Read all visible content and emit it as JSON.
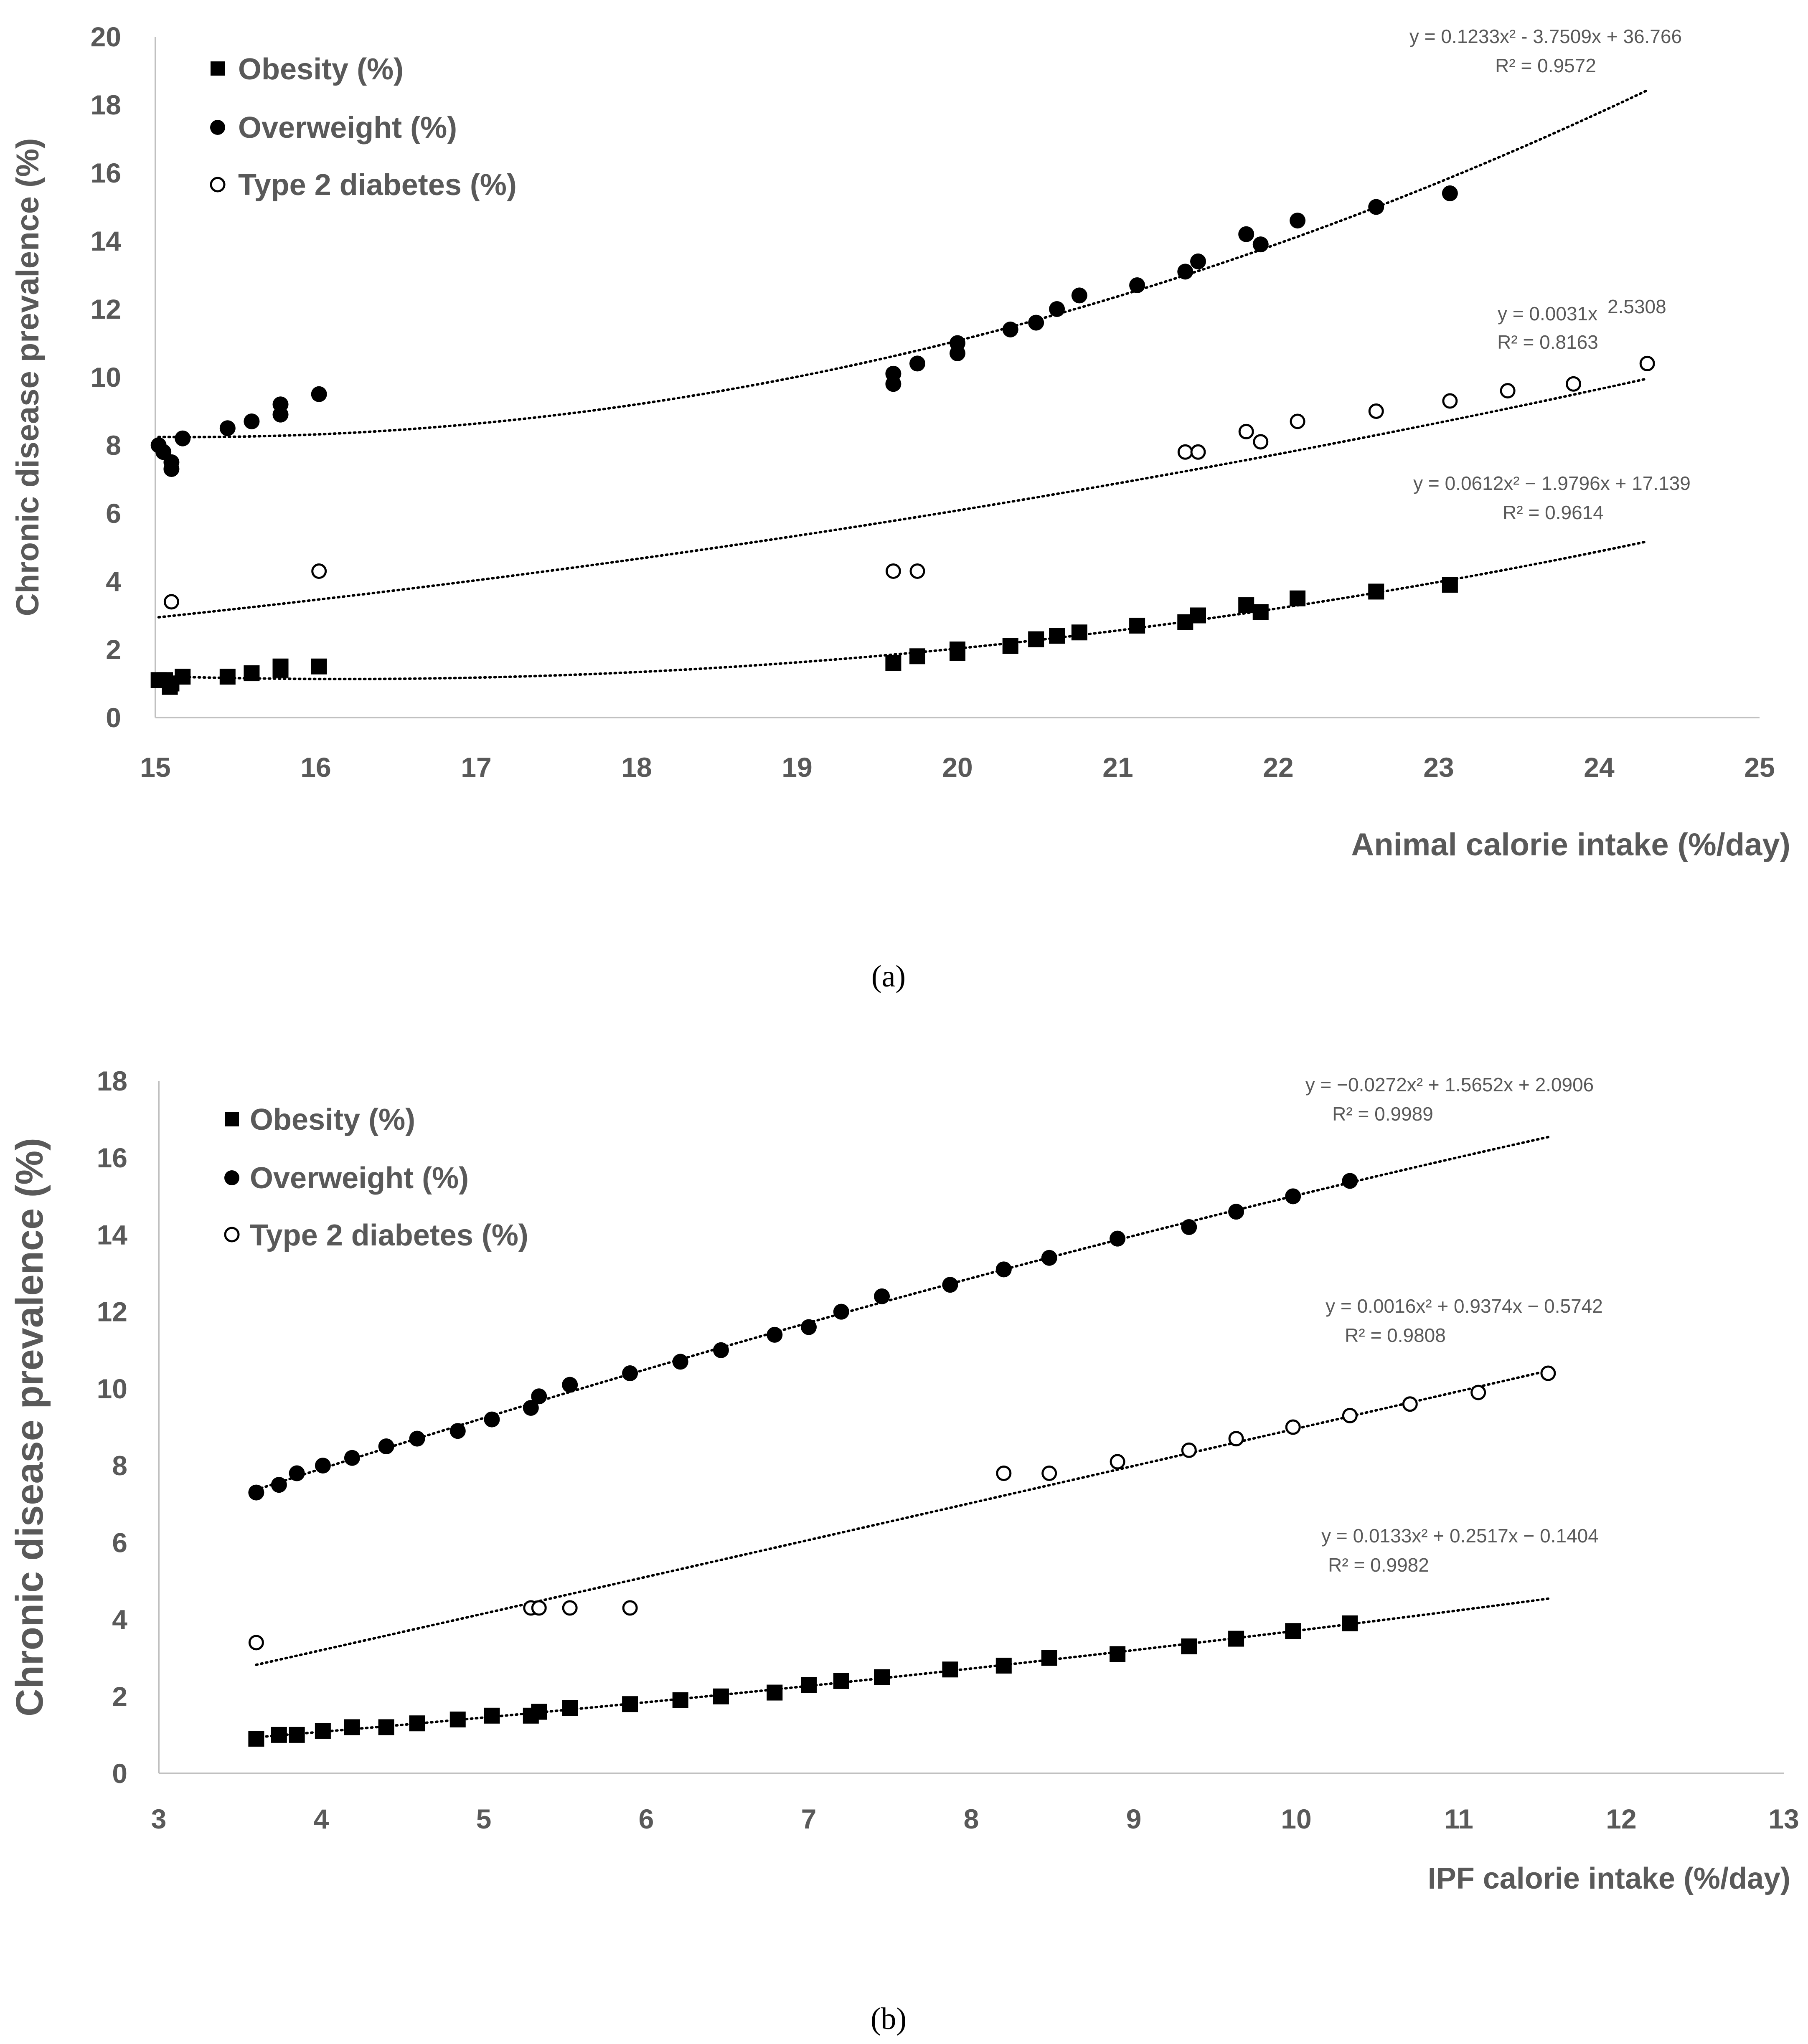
{
  "chart_data": [
    {
      "panel_label": "(a)",
      "type": "scatter",
      "title": "",
      "xlabel": "Animal calorie intake (%/day)",
      "ylabel": "Chronic disease prevalence (%)",
      "xlim": [
        15,
        25
      ],
      "ylim": [
        0,
        20
      ],
      "xticks": [
        "15",
        "16",
        "17",
        "18",
        "19",
        "20",
        "21",
        "22",
        "23",
        "24",
        "25"
      ],
      "yticks": [
        "0",
        "2",
        "4",
        "6",
        "8",
        "10",
        "12",
        "14",
        "16",
        "18",
        "20"
      ],
      "legend_position": "top-left",
      "series": [
        {
          "name": "Obesity (%)",
          "marker": "square",
          "points": [
            [
              15.02,
              1.1
            ],
            [
              15.06,
              1.1
            ],
            [
              15.09,
              0.9
            ],
            [
              15.1,
              1.0
            ],
            [
              15.17,
              1.2
            ],
            [
              15.45,
              1.2
            ],
            [
              15.6,
              1.3
            ],
            [
              15.78,
              1.5
            ],
            [
              15.78,
              1.4
            ],
            [
              16.02,
              1.5
            ],
            [
              19.6,
              1.6
            ],
            [
              19.75,
              1.8
            ],
            [
              20.0,
              2.0
            ],
            [
              20.0,
              1.9
            ],
            [
              20.33,
              2.1
            ],
            [
              20.49,
              2.3
            ],
            [
              20.62,
              2.4
            ],
            [
              20.76,
              2.5
            ],
            [
              21.12,
              2.7
            ],
            [
              21.42,
              2.8
            ],
            [
              21.5,
              3.0
            ],
            [
              21.8,
              3.3
            ],
            [
              21.89,
              3.1
            ],
            [
              22.12,
              3.5
            ],
            [
              22.61,
              3.7
            ],
            [
              23.07,
              3.9
            ]
          ],
          "trendline": {
            "kind": "poly2",
            "coef": [
              0.0612,
              -1.9796,
              17.139
            ],
            "x_range": [
              15.02,
              24.3
            ],
            "equation": "y = 0.0612x² − 1.9796x + 17.139",
            "r2": "R² = 0.9614"
          }
        },
        {
          "name": "Overweight (%)",
          "marker": "filled-circle",
          "points": [
            [
              15.02,
              8.0
            ],
            [
              15.05,
              7.8
            ],
            [
              15.1,
              7.3
            ],
            [
              15.1,
              7.5
            ],
            [
              15.17,
              8.2
            ],
            [
              15.45,
              8.5
            ],
            [
              15.6,
              8.7
            ],
            [
              15.78,
              9.2
            ],
            [
              15.78,
              8.9
            ],
            [
              16.02,
              9.5
            ],
            [
              19.6,
              10.1
            ],
            [
              19.6,
              9.8
            ],
            [
              19.75,
              10.4
            ],
            [
              20.0,
              11.0
            ],
            [
              20.0,
              10.7
            ],
            [
              20.33,
              11.4
            ],
            [
              20.49,
              11.6
            ],
            [
              20.62,
              12.0
            ],
            [
              20.76,
              12.4
            ],
            [
              21.12,
              12.7
            ],
            [
              21.42,
              13.1
            ],
            [
              21.5,
              13.4
            ],
            [
              21.8,
              14.2
            ],
            [
              21.89,
              13.9
            ],
            [
              22.12,
              14.6
            ],
            [
              22.61,
              15.0
            ],
            [
              23.07,
              15.4
            ]
          ],
          "trendline": {
            "kind": "poly2",
            "coef": [
              0.1233,
              -3.7509,
              36.766
            ],
            "x_range": [
              15.02,
              24.3
            ],
            "equation": "y = 0.1233x² - 3.7509x + 36.766",
            "r2": "R² = 0.9572"
          }
        },
        {
          "name": "Type 2 diabetes (%)",
          "marker": "open-circle",
          "points": [
            [
              15.1,
              3.4
            ],
            [
              16.02,
              4.3
            ],
            [
              19.6,
              4.3
            ],
            [
              19.75,
              4.3
            ],
            [
              21.42,
              7.8
            ],
            [
              21.5,
              7.8
            ],
            [
              21.8,
              8.4
            ],
            [
              21.89,
              8.1
            ],
            [
              22.12,
              8.7
            ],
            [
              22.61,
              9.0
            ],
            [
              23.07,
              9.3
            ],
            [
              23.43,
              9.6
            ],
            [
              23.84,
              9.8
            ],
            [
              24.3,
              10.4
            ]
          ],
          "trendline": {
            "kind": "power",
            "coef": [
              0.0031,
              2.5308
            ],
            "x_range": [
              15.02,
              24.3
            ],
            "equation": "y = 0.0031x",
            "equation_exponent": "2.5308",
            "r2": "R² = 0.8163"
          }
        }
      ]
    },
    {
      "panel_label": "(b)",
      "type": "scatter",
      "title": "",
      "xlabel": "IPF calorie intake (%/day)",
      "ylabel": "Chronic disease prevalence (%)",
      "xlim": [
        3,
        13
      ],
      "ylim": [
        0,
        18
      ],
      "xticks": [
        "3",
        "4",
        "5",
        "6",
        "7",
        "8",
        "9",
        "10",
        "11",
        "12",
        "13"
      ],
      "yticks": [
        "0",
        "2",
        "4",
        "6",
        "8",
        "10",
        "12",
        "14",
        "16",
        "18"
      ],
      "legend_position": "top-left",
      "series": [
        {
          "name": "Obesity (%)",
          "marker": "square",
          "points": [
            [
              3.6,
              0.9
            ],
            [
              3.74,
              1.0
            ],
            [
              3.85,
              1.0
            ],
            [
              4.01,
              1.1
            ],
            [
              4.19,
              1.2
            ],
            [
              4.4,
              1.2
            ],
            [
              4.59,
              1.3
            ],
            [
              4.84,
              1.4
            ],
            [
              5.05,
              1.5
            ],
            [
              5.29,
              1.5
            ],
            [
              5.34,
              1.6
            ],
            [
              5.53,
              1.7
            ],
            [
              5.9,
              1.8
            ],
            [
              6.21,
              1.9
            ],
            [
              6.46,
              2.0
            ],
            [
              6.79,
              2.1
            ],
            [
              7.0,
              2.3
            ],
            [
              7.2,
              2.4
            ],
            [
              7.45,
              2.5
            ],
            [
              7.87,
              2.7
            ],
            [
              8.2,
              2.8
            ],
            [
              8.48,
              3.0
            ],
            [
              8.9,
              3.1
            ],
            [
              9.34,
              3.3
            ],
            [
              9.63,
              3.5
            ],
            [
              9.98,
              3.7
            ],
            [
              10.33,
              3.9
            ]
          ],
          "trendline": {
            "kind": "poly2",
            "coef": [
              0.0133,
              0.2517,
              -0.1404
            ],
            "x_range": [
              3.6,
              11.55
            ],
            "equation": "y = 0.0133x² + 0.2517x − 0.1404",
            "r2": "R² = 0.9982"
          }
        },
        {
          "name": "Overweight (%)",
          "marker": "filled-circle",
          "points": [
            [
              3.6,
              7.3
            ],
            [
              3.74,
              7.5
            ],
            [
              3.85,
              7.8
            ],
            [
              4.01,
              8.0
            ],
            [
              4.19,
              8.2
            ],
            [
              4.4,
              8.5
            ],
            [
              4.59,
              8.7
            ],
            [
              4.84,
              8.9
            ],
            [
              5.05,
              9.2
            ],
            [
              5.29,
              9.5
            ],
            [
              5.34,
              9.8
            ],
            [
              5.53,
              10.1
            ],
            [
              5.9,
              10.4
            ],
            [
              6.21,
              10.7
            ],
            [
              6.46,
              11.0
            ],
            [
              6.79,
              11.4
            ],
            [
              7.0,
              11.6
            ],
            [
              7.2,
              12.0
            ],
            [
              7.45,
              12.4
            ],
            [
              7.87,
              12.7
            ],
            [
              8.2,
              13.1
            ],
            [
              8.48,
              13.4
            ],
            [
              8.9,
              13.9
            ],
            [
              9.34,
              14.2
            ],
            [
              9.63,
              14.6
            ],
            [
              9.98,
              15.0
            ],
            [
              10.33,
              15.4
            ]
          ],
          "trendline": {
            "kind": "poly2",
            "coef": [
              -0.0272,
              1.5652,
              2.0906
            ],
            "x_range": [
              3.6,
              11.55
            ],
            "equation": "y = −0.0272x² + 1.5652x + 2.0906",
            "r2": "R² = 0.9989"
          }
        },
        {
          "name": "Type 2 diabetes (%)",
          "marker": "open-circle",
          "points": [
            [
              3.6,
              3.4
            ],
            [
              5.29,
              4.3
            ],
            [
              5.34,
              4.3
            ],
            [
              5.53,
              4.3
            ],
            [
              5.9,
              4.3
            ],
            [
              8.2,
              7.8
            ],
            [
              8.48,
              7.8
            ],
            [
              8.9,
              8.1
            ],
            [
              9.34,
              8.4
            ],
            [
              9.63,
              8.7
            ],
            [
              9.98,
              9.0
            ],
            [
              10.33,
              9.3
            ],
            [
              10.7,
              9.6
            ],
            [
              11.12,
              9.9
            ],
            [
              11.55,
              10.4
            ]
          ],
          "trendline": {
            "kind": "poly2",
            "coef": [
              0.0016,
              0.9374,
              -0.5742
            ],
            "x_range": [
              3.6,
              11.55
            ],
            "equation": "y = 0.0016x² + 0.9374x − 0.5742",
            "r2": "R² = 0.9808"
          }
        }
      ]
    }
  ]
}
